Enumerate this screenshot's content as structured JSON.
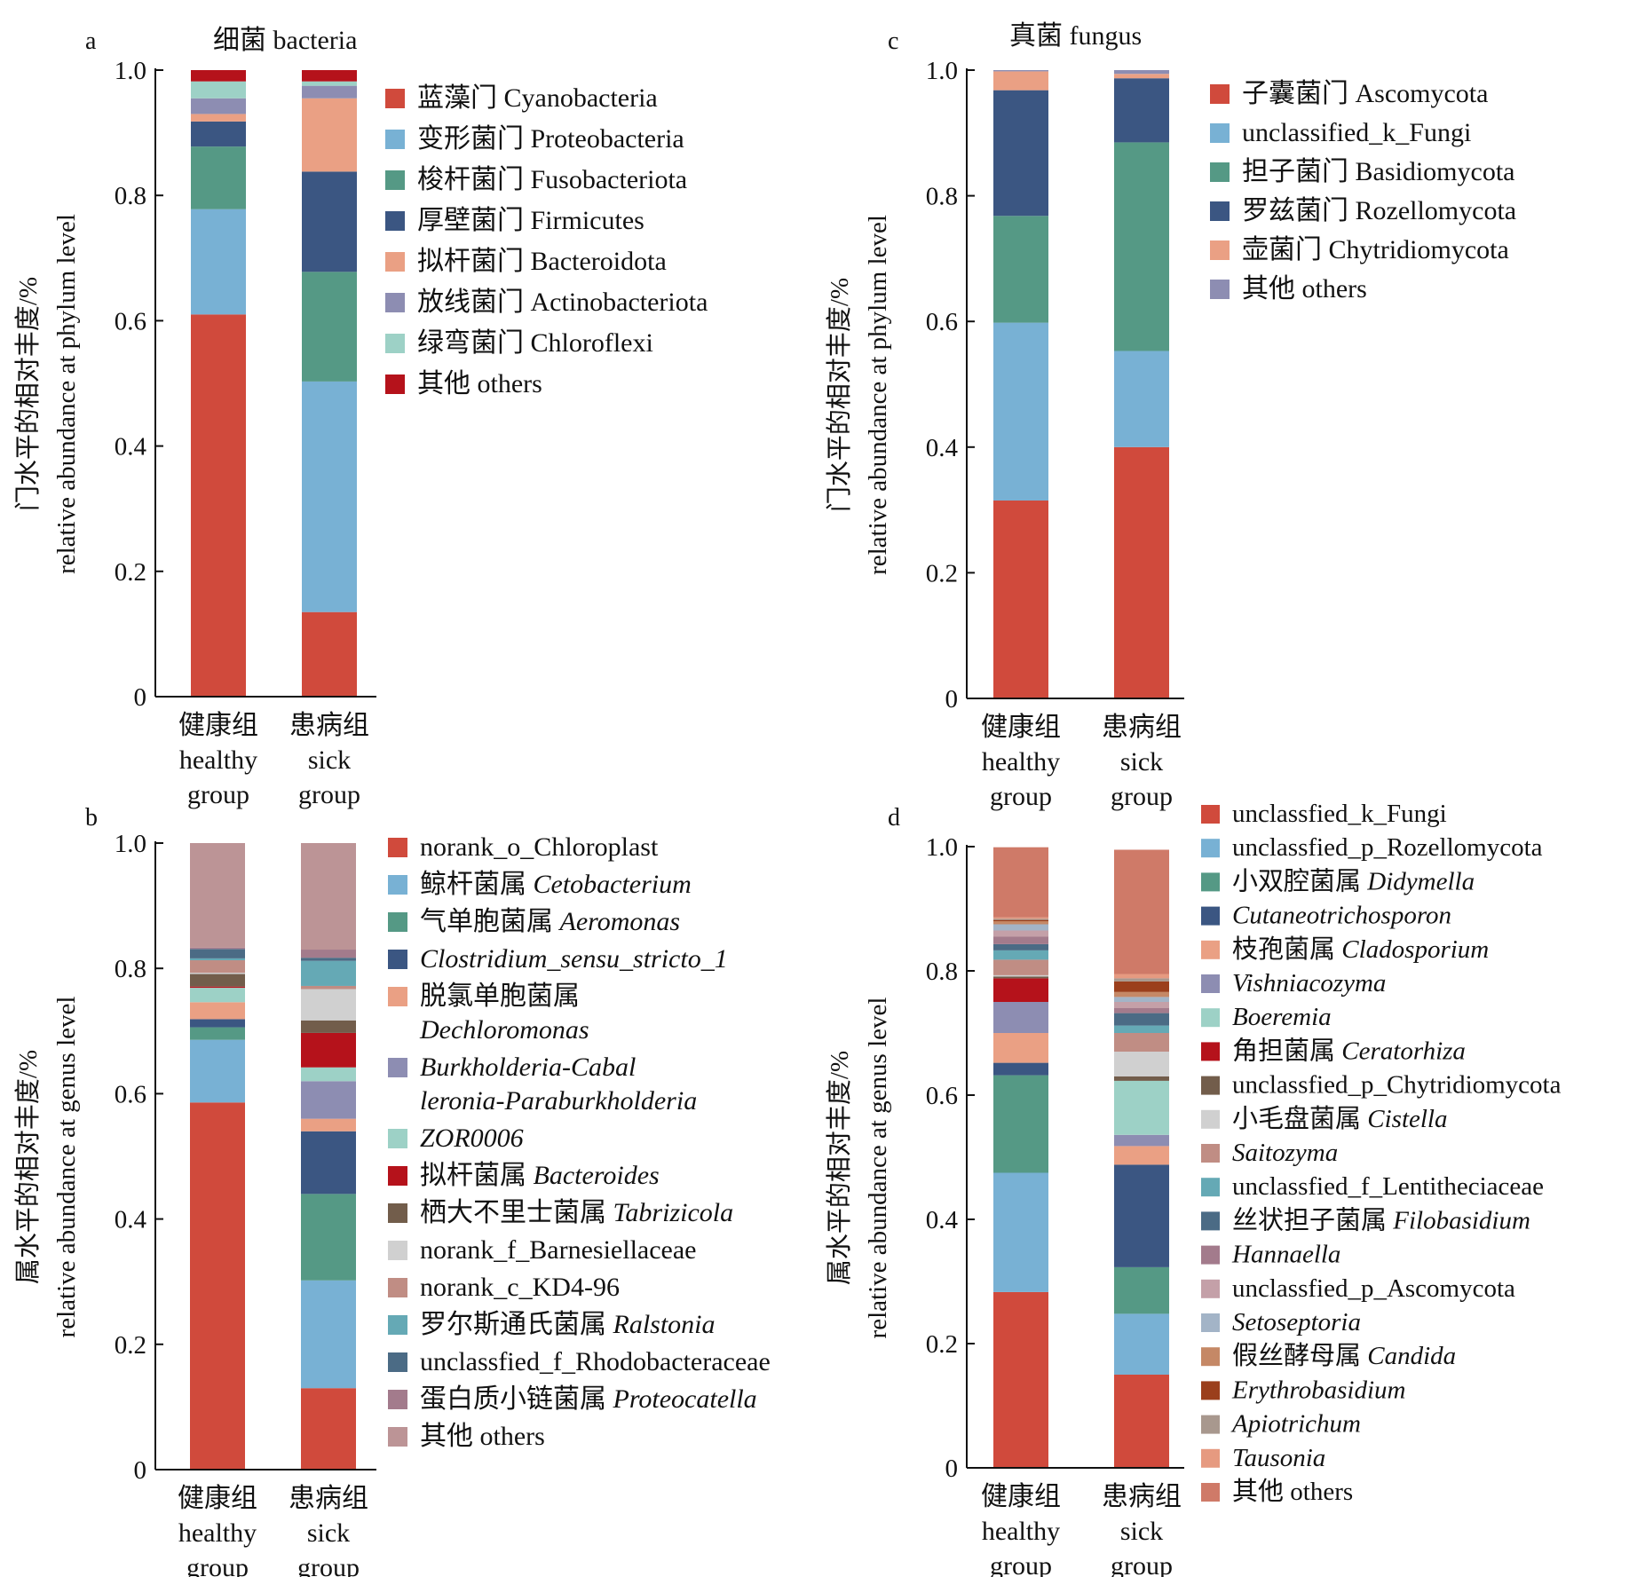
{
  "chart_data": [
    {
      "panel": "a",
      "type": "bar",
      "stacked": true,
      "title": "细菌  bacteria",
      "ylabel_cn": "门水平的相对丰度/%",
      "ylabel_en": "relative abundance at phylum level",
      "ylim": [
        0,
        1
      ],
      "yticks": [
        "0",
        "0.2",
        "0.4",
        "0.6",
        "0.8",
        "1.0"
      ],
      "categories": [
        {
          "cn": "健康组",
          "en1": "healthy",
          "en2": "group"
        },
        {
          "cn": "患病组",
          "en1": "sick",
          "en2": "group"
        }
      ],
      "series": [
        {
          "name_cn": "蓝藻门",
          "name_en": "Cyanobacteria",
          "italic": false,
          "color": "#d04a3c",
          "values": [
            0.61,
            0.135
          ]
        },
        {
          "name_cn": "变形菌门",
          "name_en": "Proteobacteria",
          "italic": false,
          "color": "#78b1d4",
          "values": [
            0.168,
            0.368
          ]
        },
        {
          "name_cn": "梭杆菌门",
          "name_en": "Fusobacteriota",
          "italic": false,
          "color": "#559985",
          "values": [
            0.1,
            0.175
          ]
        },
        {
          "name_cn": "厚壁菌门",
          "name_en": "Firmicutes",
          "italic": false,
          "color": "#3b5682",
          "values": [
            0.04,
            0.16
          ]
        },
        {
          "name_cn": "拟杆菌门",
          "name_en": "Bacteroidota",
          "italic": false,
          "color": "#eaa084",
          "values": [
            0.012,
            0.117
          ]
        },
        {
          "name_cn": "放线菌门",
          "name_en": "Actinobacteriota",
          "italic": false,
          "color": "#8d8db2",
          "values": [
            0.025,
            0.02
          ]
        },
        {
          "name_cn": "绿弯菌门",
          "name_en": "Chloroflexi",
          "italic": false,
          "color": "#9dd1c6",
          "values": [
            0.027,
            0.007
          ]
        },
        {
          "name_cn": "其他",
          "name_en": "others",
          "italic": false,
          "color": "#b5121b",
          "values": [
            0.018,
            0.018
          ]
        }
      ]
    },
    {
      "panel": "c",
      "type": "bar",
      "stacked": true,
      "title": "真菌 fungus",
      "ylabel_cn": "门水平的相对丰度/%",
      "ylabel_en": "relative abundance at phylum level",
      "ylim": [
        0,
        1
      ],
      "yticks": [
        "0",
        "0.2",
        "0.4",
        "0.6",
        "0.8",
        "1.0"
      ],
      "categories": [
        {
          "cn": "健康组",
          "en1": "healthy",
          "en2": "group"
        },
        {
          "cn": "患病组",
          "en1": "sick",
          "en2": "group"
        }
      ],
      "series": [
        {
          "name_cn": "子囊菌门",
          "name_en": "Ascomycota",
          "italic": false,
          "color": "#d04a3c",
          "values": [
            0.315,
            0.4
          ]
        },
        {
          "name_cn": "",
          "name_en": "unclassified_k_Fungi",
          "italic": false,
          "color": "#78b1d4",
          "values": [
            0.283,
            0.153
          ]
        },
        {
          "name_cn": "担子菌门",
          "name_en": "Basidiomycota",
          "italic": false,
          "color": "#559985",
          "values": [
            0.17,
            0.332
          ]
        },
        {
          "name_cn": "罗兹菌门",
          "name_en": "Rozellomycota",
          "italic": false,
          "color": "#3b5682",
          "values": [
            0.2,
            0.102
          ]
        },
        {
          "name_cn": "壶菌门",
          "name_en": "Chytridiomycota",
          "italic": false,
          "color": "#eaa084",
          "values": [
            0.03,
            0.007
          ]
        },
        {
          "name_cn": "其他",
          "name_en": "others",
          "italic": false,
          "color": "#8d8db2",
          "values": [
            0.002,
            0.006
          ]
        }
      ]
    },
    {
      "panel": "b",
      "type": "bar",
      "stacked": true,
      "title": "",
      "ylabel_cn": "属水平的相对丰度/%",
      "ylabel_en": "relative abundance at genus level",
      "ylim": [
        0,
        1
      ],
      "yticks": [
        "0",
        "0.2",
        "0.4",
        "0.6",
        "0.8",
        "1.0"
      ],
      "categories": [
        {
          "cn": "健康组",
          "en1": "healthy",
          "en2": "group"
        },
        {
          "cn": "患病组",
          "en1": "sick",
          "en2": "group"
        }
      ],
      "series": [
        {
          "name_cn": "",
          "name_en": "norank_o_Chloroplast",
          "italic": false,
          "color": "#d04a3c",
          "values": [
            0.586,
            0.13
          ]
        },
        {
          "name_cn": "鲸杆菌属",
          "name_en": "Cetobacterium",
          "italic": true,
          "color": "#78b1d4",
          "values": [
            0.1,
            0.172
          ]
        },
        {
          "name_cn": "气单胞菌属",
          "name_en": "Aeromonas",
          "italic": true,
          "color": "#559985",
          "values": [
            0.02,
            0.138
          ]
        },
        {
          "name_cn": "",
          "name_en": "Clostridium_sensu_stricto_1",
          "italic": true,
          "color": "#3b5682",
          "values": [
            0.013,
            0.1
          ]
        },
        {
          "name_cn": "脱氯单胞菌属",
          "name_en": "Dechloromonas",
          "italic": true,
          "color": "#eaa084",
          "values": [
            0.027,
            0.02
          ],
          "two_line": true
        },
        {
          "name_cn": "",
          "name_en": "Burkholderia-Cabal",
          "name_en2": "leronia-Paraburkholderia",
          "italic": true,
          "color": "#8d8db2",
          "values": [
            0.0,
            0.06
          ]
        },
        {
          "name_cn": "",
          "name_en": "ZOR0006",
          "italic": true,
          "color": "#9dd1c6",
          "values": [
            0.023,
            0.022
          ]
        },
        {
          "name_cn": "拟杆菌属",
          "name_en": "Bacteroides",
          "italic": true,
          "color": "#b5121b",
          "values": [
            0.002,
            0.055
          ]
        },
        {
          "name_cn": "栖大不里士菌属",
          "name_en": "Tabrizicola",
          "italic": true,
          "color": "#725d4b",
          "values": [
            0.02,
            0.02
          ]
        },
        {
          "name_cn": "",
          "name_en": "norank_f_Barnesiellaceae",
          "italic": false,
          "color": "#d0d0d0",
          "values": [
            0.002,
            0.05
          ]
        },
        {
          "name_cn": "",
          "name_en": "norank_c_KD4-96",
          "italic": false,
          "color": "#c08d84",
          "values": [
            0.02,
            0.005
          ]
        },
        {
          "name_cn": "罗尔斯通氏菌属",
          "name_en": "Ralstonia",
          "italic": true,
          "color": "#65a9b5",
          "values": [
            0.003,
            0.04
          ]
        },
        {
          "name_cn": "",
          "name_en": "unclassfied_f_Rhodobacteraceae",
          "italic": false,
          "color": "#4b6b85",
          "values": [
            0.015,
            0.005
          ]
        },
        {
          "name_cn": "蛋白质小链菌属",
          "name_en": "Proteocatella",
          "italic": true,
          "color": "#a37b8c",
          "values": [
            0.002,
            0.013
          ]
        },
        {
          "name_cn": "其他",
          "name_en": "others",
          "italic": false,
          "color": "#bc9496",
          "values": [
            0.167,
            0.17
          ]
        }
      ]
    },
    {
      "panel": "d",
      "type": "bar",
      "stacked": true,
      "title": "",
      "ylabel_cn": "属水平的相对丰度/%",
      "ylabel_en": "relative abundance at genus level",
      "ylim": [
        0,
        1
      ],
      "yticks": [
        "0",
        "0.2",
        "0.4",
        "0.6",
        "0.8",
        "1.0"
      ],
      "categories": [
        {
          "cn": "健康组",
          "en1": "healthy",
          "en2": "group"
        },
        {
          "cn": "患病组",
          "en1": "sick",
          "en2": "group"
        }
      ],
      "series": [
        {
          "name_cn": "",
          "name_en": "unclassfied_k_Fungi",
          "italic": false,
          "color": "#d04a3c",
          "values": [
            0.283,
            0.15
          ]
        },
        {
          "name_cn": "",
          "name_en": "unclassfied_p_Rozellomycota",
          "italic": false,
          "color": "#78b1d4",
          "values": [
            0.192,
            0.098
          ]
        },
        {
          "name_cn": "小双腔菌属",
          "name_en": "Didymella",
          "italic": true,
          "color": "#559985",
          "values": [
            0.157,
            0.075
          ]
        },
        {
          "name_cn": "",
          "name_en": "Cutaneotrichosporon",
          "italic": true,
          "color": "#3b5682",
          "values": [
            0.02,
            0.165
          ]
        },
        {
          "name_cn": "枝孢菌属",
          "name_en": "Cladosporium",
          "italic": true,
          "color": "#eaa084",
          "values": [
            0.048,
            0.03
          ]
        },
        {
          "name_cn": "",
          "name_en": "Vishniacozyma",
          "italic": true,
          "color": "#8d8db2",
          "values": [
            0.05,
            0.018
          ]
        },
        {
          "name_cn": "",
          "name_en": "Boeremia",
          "italic": true,
          "color": "#9dd1c6",
          "values": [
            0.0,
            0.087
          ]
        },
        {
          "name_cn": "角担菌属",
          "name_en": "Ceratorhiza",
          "italic": true,
          "color": "#b5121b",
          "values": [
            0.038,
            0.0
          ]
        },
        {
          "name_cn": "",
          "name_en": "unclassfied_p_Chytridiomycota",
          "italic": false,
          "color": "#725d4b",
          "values": [
            0.003,
            0.007
          ]
        },
        {
          "name_cn": "小毛盘菌属",
          "name_en": "Cistella",
          "italic": true,
          "color": "#d0d0d0",
          "values": [
            0.002,
            0.04
          ]
        },
        {
          "name_cn": "",
          "name_en": "Saitozyma",
          "italic": true,
          "color": "#c08d84",
          "values": [
            0.025,
            0.03
          ]
        },
        {
          "name_cn": "",
          "name_en": "unclassfied_f_Lentitheciaceae",
          "italic": false,
          "color": "#65a9b5",
          "values": [
            0.015,
            0.012
          ]
        },
        {
          "name_cn": "丝状担子菌属",
          "name_en": "Filobasidium",
          "italic": true,
          "color": "#4b6b85",
          "values": [
            0.01,
            0.02
          ]
        },
        {
          "name_cn": "",
          "name_en": "Hannaella",
          "italic": true,
          "color": "#a37b8c",
          "values": [
            0.012,
            0.008
          ]
        },
        {
          "name_cn": "",
          "name_en": "unclassfied_p_Ascomycota",
          "italic": false,
          "color": "#c4a0a8",
          "values": [
            0.01,
            0.01
          ]
        },
        {
          "name_cn": "",
          "name_en": "Setoseptoria",
          "italic": true,
          "color": "#a3b4c7",
          "values": [
            0.01,
            0.008
          ]
        },
        {
          "name_cn": "假丝酵母属",
          "name_en": "Candida",
          "italic": true,
          "color": "#c58866",
          "values": [
            0.005,
            0.008
          ]
        },
        {
          "name_cn": "",
          "name_en": "Erythrobasidium",
          "italic": true,
          "color": "#9b3f1c",
          "values": [
            0.002,
            0.017
          ]
        },
        {
          "name_cn": "",
          "name_en": "Apiotrichum",
          "italic": true,
          "color": "#a8988e",
          "values": [
            0.002,
            0.005
          ]
        },
        {
          "name_cn": "",
          "name_en": "Tausonia",
          "italic": true,
          "color": "#e69a80",
          "values": [
            0.002,
            0.007
          ]
        },
        {
          "name_cn": "其他",
          "name_en": "others",
          "italic": false,
          "color": "#cf7a68",
          "values": [
            0.113,
            0.2
          ]
        }
      ]
    }
  ]
}
